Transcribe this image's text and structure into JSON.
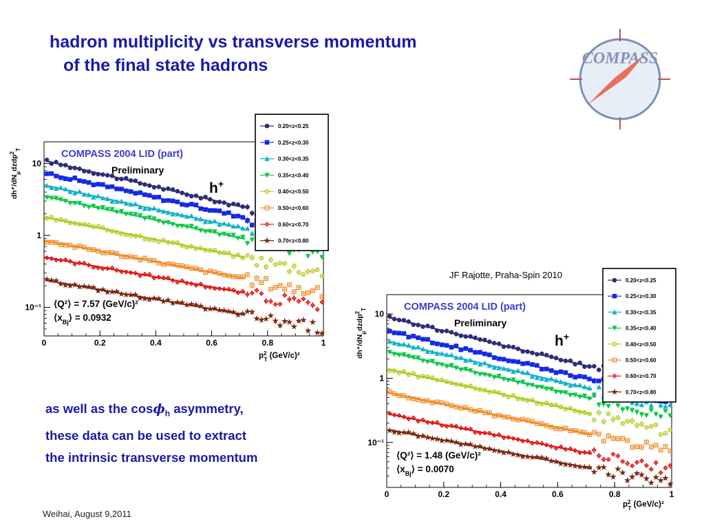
{
  "slide": {
    "title_line1": "hadron multiplicity vs transverse momentum",
    "title_line2": "of the final state hadrons",
    "logo_text": "COMPASS",
    "credit": "JF Rajotte, Praha-Spin 2010",
    "footer": "Weihai, August 9,2011",
    "desc_line1_pre": "as well as the cos",
    "desc_phi": "ϕ",
    "desc_phi_sub": "h",
    "desc_line1_post": " asymmetry,",
    "desc_line2": "these data can be used to extract",
    "desc_line3": "the intrinsic transverse momentum"
  },
  "colors": {
    "title": "#1a1aa6",
    "plot_label": "#3c3cd0",
    "series": [
      "#2e2e78",
      "#1428e6",
      "#13b4c8",
      "#10c84a",
      "#b4c81e",
      "#f08c28",
      "#e01414",
      "#7a2814"
    ]
  },
  "chart_data": [
    {
      "type": "scatter",
      "label": "COMPASS 2004 LID (part)",
      "status": "Preliminary",
      "hadron": "h",
      "hadron_sup": "+",
      "ylabel": "dh⁺/dN",
      "ylabel_sub": "μ",
      "ylabel_post": "dzdp",
      "ylabel_sup": "2",
      "ylabel_sub2": "T",
      "xlabel": "p",
      "xlabel_sup": "2",
      "xlabel_sub": "T",
      "xlabel_unit": " (GeV/c)²",
      "q2_text": "⟨Q²⟩ = 7.57 (GeV/c)²",
      "xbj_text": "⟨x",
      "xbj_sub": "Bj",
      "xbj_post": "⟩ = 0.0932",
      "x_range": [
        0,
        1.0
      ],
      "y_range": [
        0.04,
        20
      ],
      "y_scale": "log",
      "x_ticks": [
        "0",
        "0.2",
        "0.4",
        "0.6",
        "0.8",
        "1"
      ],
      "x_tick_values": [
        0,
        0.2,
        0.4,
        0.6,
        0.8,
        1.0
      ],
      "y_ticks": [
        "10",
        "1",
        "10⁻¹"
      ],
      "y_tick_values": [
        10,
        1,
        0.1
      ],
      "legend_position": "top-right",
      "series": [
        {
          "name": "0.20<z<0.25",
          "y0": 11,
          "slope": 2.1,
          "fit_end": 0.72
        },
        {
          "name": "0.25<z<0.30",
          "y0": 7.5,
          "slope": 2.0,
          "fit_end": 0.72
        },
        {
          "name": "0.30<z<0.35",
          "y0": 5.0,
          "slope": 1.95,
          "fit_end": 0.72
        },
        {
          "name": "0.35<z<0.40",
          "y0": 3.5,
          "slope": 1.9,
          "fit_end": 0.72
        },
        {
          "name": "0.40<z<0.50",
          "y0": 1.8,
          "slope": 1.8,
          "fit_end": 0.72
        },
        {
          "name": "0.50<z<0.60",
          "y0": 0.85,
          "slope": 1.7,
          "fit_end": 0.72
        },
        {
          "name": "0.60<z<0.70",
          "y0": 0.5,
          "slope": 1.6,
          "fit_end": 0.72
        },
        {
          "name": "0.70<z<0.80",
          "y0": 0.24,
          "slope": 1.55,
          "fit_end": 0.72
        }
      ]
    },
    {
      "type": "scatter",
      "label": "COMPASS 2004 LID (part)",
      "status": "Preliminary",
      "hadron": "h",
      "hadron_sup": "+",
      "ylabel": "dh⁺/dN",
      "ylabel_sub": "μ",
      "ylabel_post": "dzdp",
      "ylabel_sup": "2",
      "ylabel_sub2": "T",
      "xlabel": "p",
      "xlabel_sup": "2",
      "xlabel_sub": "T",
      "xlabel_unit": " (GeV/c)²",
      "q2_text": "⟨Q²⟩ = 1.48 (GeV/c)²",
      "xbj_text": "⟨x",
      "xbj_sub": "Bj",
      "xbj_post": "⟩ = 0.0070",
      "x_range": [
        0,
        1.0
      ],
      "y_range": [
        0.02,
        20
      ],
      "y_scale": "log",
      "x_ticks": [
        "0",
        "0.2",
        "0.4",
        "0.6",
        "0.8",
        "1"
      ],
      "x_tick_values": [
        0,
        0.2,
        0.4,
        0.6,
        0.8,
        1.0
      ],
      "y_ticks": [
        "10",
        "1",
        "10⁻¹"
      ],
      "y_tick_values": [
        10,
        1,
        0.1
      ],
      "legend_position": "top-right",
      "series": [
        {
          "name": "0.20<z<0.25",
          "y0": 9,
          "slope": 2.5,
          "fit_end": 0.72
        },
        {
          "name": "0.25<z<0.30",
          "y0": 5.5,
          "slope": 2.45,
          "fit_end": 0.72
        },
        {
          "name": "0.30<z<0.35",
          "y0": 3.8,
          "slope": 2.4,
          "fit_end": 0.72
        },
        {
          "name": "0.35<z<0.40",
          "y0": 2.6,
          "slope": 2.35,
          "fit_end": 0.72
        },
        {
          "name": "0.40<z<0.50",
          "y0": 1.4,
          "slope": 2.25,
          "fit_end": 0.72
        },
        {
          "name": "0.50<z<0.60",
          "y0": 0.6,
          "slope": 2.1,
          "fit_end": 0.72
        },
        {
          "name": "0.60<z<0.70",
          "y0": 0.28,
          "slope": 2.0,
          "fit_end": 0.72
        },
        {
          "name": "0.70<z<0.80",
          "y0": 0.16,
          "slope": 1.95,
          "fit_end": 0.72
        }
      ]
    }
  ]
}
